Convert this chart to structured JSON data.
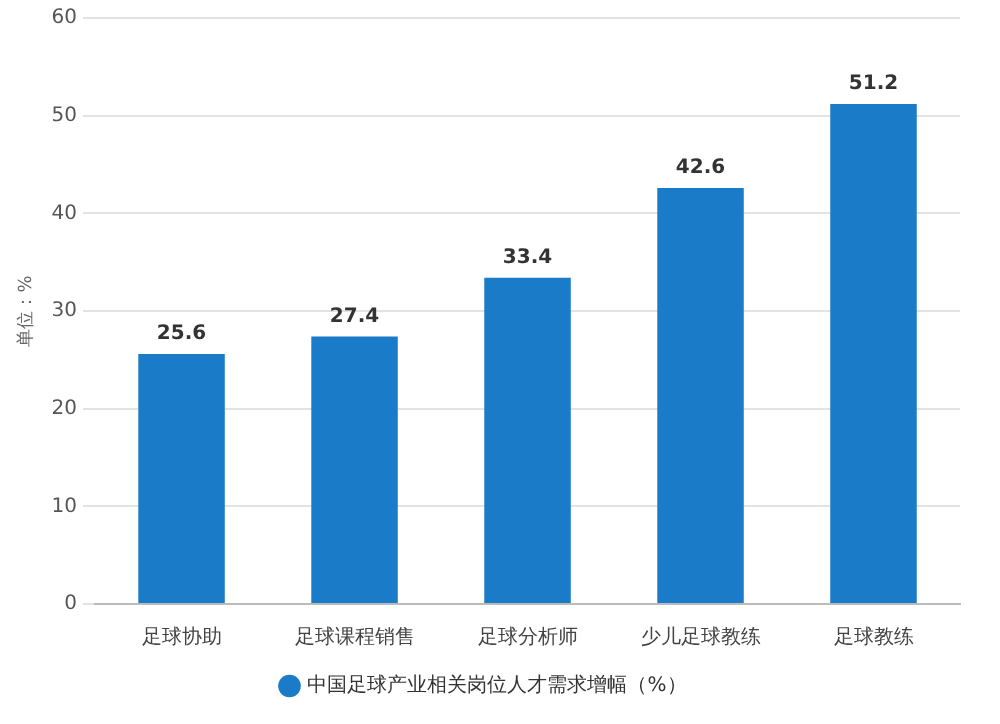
{
  "chart_data": {
    "type": "bar",
    "ylabel": "单位：%",
    "categories": [
      "足球协助",
      "足球课程销售",
      "足球分析师",
      "少儿足球教练",
      "足球教练"
    ],
    "series": [
      {
        "name": "中国足球产业相关岗位人才需求增幅（%）",
        "color": "#1a7bc8",
        "values": [
          25.6,
          27.4,
          33.4,
          42.6,
          51.2
        ]
      }
    ],
    "ylim": [
      0,
      60
    ],
    "yticks": [
      0,
      10,
      20,
      30,
      40,
      50,
      60
    ],
    "grid": "y",
    "legend": "bottom",
    "data_labels": true
  }
}
